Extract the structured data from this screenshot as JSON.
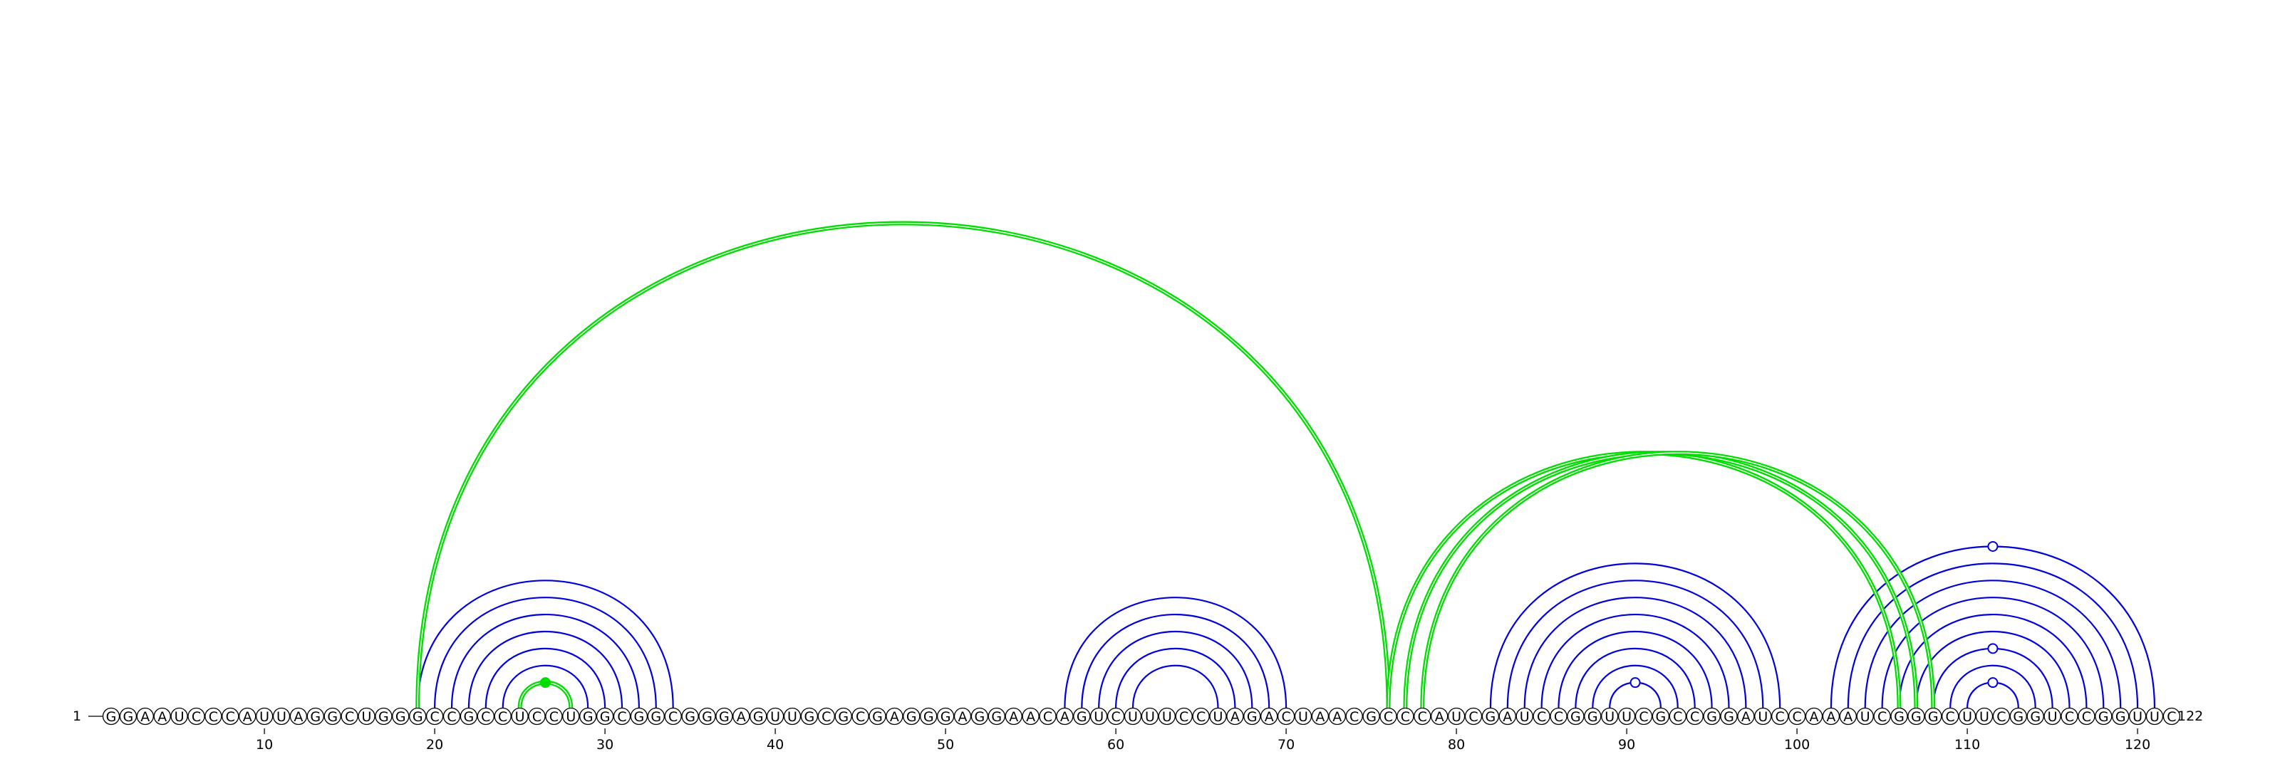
{
  "sequence": "GGAAUCCCAUUAGGCUGGGCCGCCUCCUGGCGGCGGGAGUUGCGCGAGGGAGGAACAGUCUUUCCUAGACUAACGCCCAUCGAUCCGGUUCGCCGGAUCCAAAUCGGGCUUCGGUCCGGUUC",
  "start_label": "1",
  "end_label": "122",
  "ticks": [
    "10",
    "20",
    "30",
    "40",
    "50",
    "60",
    "70",
    "80",
    "90",
    "100",
    "110",
    "120"
  ],
  "colors": {
    "blue": "#0000dd",
    "green": "#00dd00",
    "backbone": "#000000"
  },
  "pairs_blue": [
    [
      19,
      34
    ],
    [
      20,
      33
    ],
    [
      21,
      32
    ],
    [
      22,
      31
    ],
    [
      23,
      30
    ],
    [
      24,
      29
    ],
    [
      25,
      28
    ],
    [
      57,
      70
    ],
    [
      58,
      69
    ],
    [
      59,
      68
    ],
    [
      60,
      67
    ],
    [
      61,
      66
    ],
    [
      82,
      99
    ],
    [
      83,
      98
    ],
    [
      84,
      97
    ],
    [
      85,
      96
    ],
    [
      86,
      95
    ],
    [
      87,
      94
    ],
    [
      88,
      93
    ],
    [
      89,
      92
    ],
    [
      102,
      121
    ],
    [
      103,
      120
    ],
    [
      104,
      119
    ],
    [
      105,
      118
    ],
    [
      106,
      117
    ],
    [
      107,
      116
    ],
    [
      108,
      115
    ],
    [
      109,
      114
    ],
    [
      110,
      113
    ]
  ],
  "pairs_green": [
    [
      19,
      76
    ],
    [
      76,
      106
    ],
    [
      77,
      107
    ],
    [
      78,
      108
    ],
    [
      25,
      28
    ]
  ],
  "markers": [
    {
      "pos": 26.5,
      "level": 1,
      "style": "filled",
      "color": "green"
    },
    {
      "pos": 90.5,
      "level": 1,
      "style": "open",
      "color": "blue"
    },
    {
      "pos": 111.5,
      "level": 1,
      "style": "open",
      "color": "blue"
    },
    {
      "pos": 111.5,
      "level": 3,
      "style": "open",
      "color": "blue"
    },
    {
      "pos": 111.5,
      "level": 9,
      "style": "open",
      "color": "blue"
    }
  ]
}
